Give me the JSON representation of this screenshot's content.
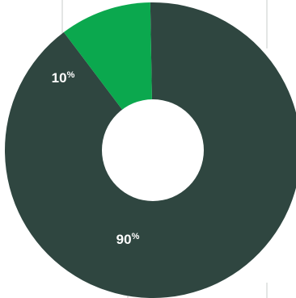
{
  "chart_data": {
    "type": "pie",
    "donut": true,
    "start_angle_deg": -1,
    "categories": [
      "",
      ""
    ],
    "values": [
      90,
      10
    ],
    "unit": "%",
    "data_labels": [
      "90",
      "10"
    ],
    "colors": [
      "#2f4640",
      "#0ba84e"
    ],
    "legend": "none"
  },
  "colors": {
    "background": "#ffffff",
    "leader_line": "#c9cecb",
    "label_text": "#ffffff"
  }
}
